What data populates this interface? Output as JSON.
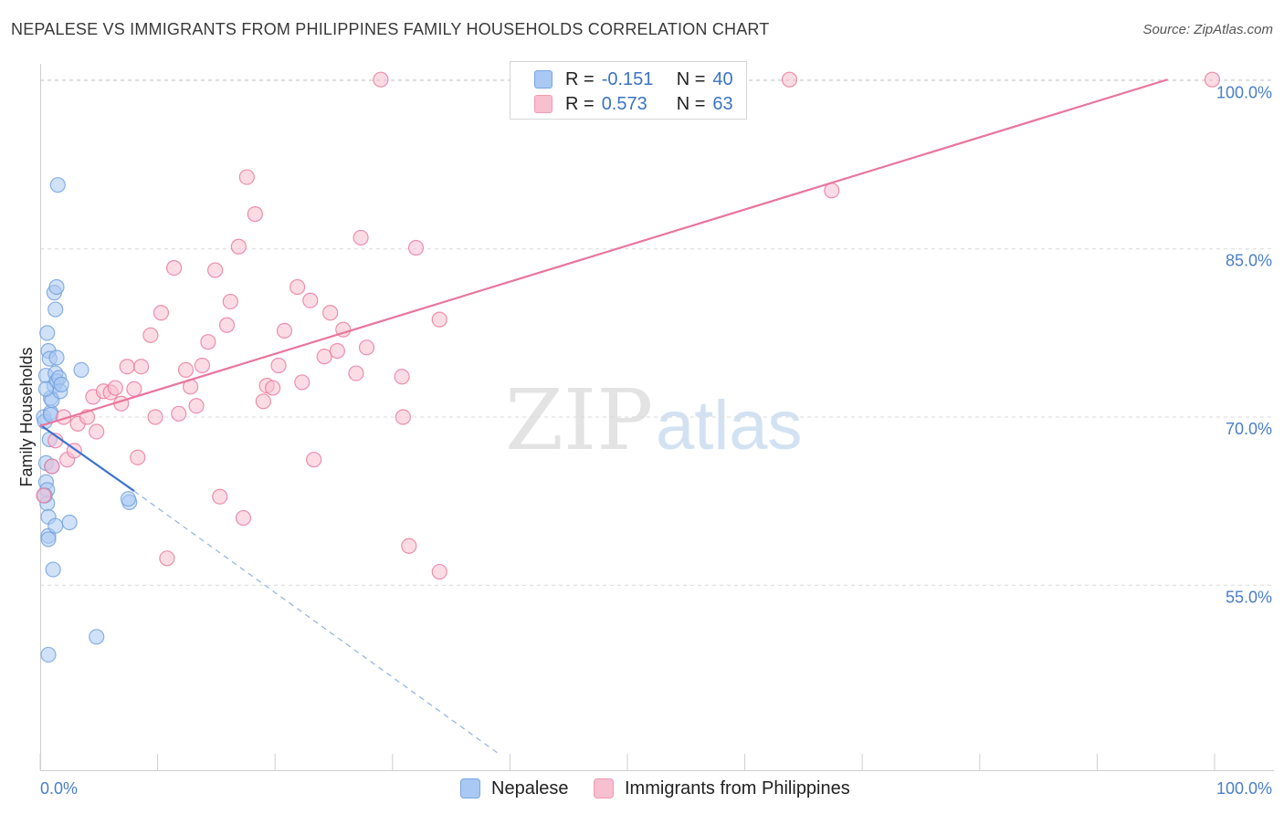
{
  "title": "NEPALESE VS IMMIGRANTS FROM PHILIPPINES FAMILY HOUSEHOLDS CORRELATION CHART",
  "source": "Source: ZipAtlas.com",
  "watermark": {
    "zip": "ZIP",
    "atlas": "atlas"
  },
  "legend": {
    "series": [
      {
        "r_label": "R =",
        "r_value": "-0.151",
        "n_label": "N =",
        "n_value": "40",
        "color": "#a9c8f3",
        "border": "#7aa6e0"
      },
      {
        "r_label": "R =",
        "r_value": "0.573",
        "n_label": "N =",
        "n_value": "63",
        "color": "#f7bfd0",
        "border": "#ee9ab4"
      }
    ]
  },
  "bottom_legend": {
    "nepalese": "Nepalese",
    "philippines": "Immigrants from Philippines"
  },
  "chart_data": {
    "type": "scatter",
    "title": "NEPALESE VS IMMIGRANTS FROM PHILIPPINES FAMILY HOUSEHOLDS CORRELATION CHART",
    "xlabel": "",
    "ylabel": "Family Households",
    "xlim": [
      0,
      100
    ],
    "ylim": [
      38.5,
      101.5
    ],
    "x_tick_labels": [
      "0.0%",
      "100.0%"
    ],
    "y_ticks": [
      55,
      70,
      85,
      100
    ],
    "y_tick_labels": [
      "55.0%",
      "70.0%",
      "85.0%",
      "100.0%"
    ],
    "grid": true,
    "series": [
      {
        "name": "Nepalese",
        "color": "#6f9fdc",
        "fill": "#a9c8f3",
        "points": [
          [
            0.3,
            70.0
          ],
          [
            0.4,
            69.6
          ],
          [
            0.5,
            73.7
          ],
          [
            0.5,
            65.9
          ],
          [
            0.5,
            64.2
          ],
          [
            0.6,
            63.5
          ],
          [
            0.6,
            62.3
          ],
          [
            0.7,
            61.1
          ],
          [
            0.7,
            59.4
          ],
          [
            0.7,
            59.1
          ],
          [
            0.6,
            77.5
          ],
          [
            0.7,
            75.9
          ],
          [
            0.8,
            75.2
          ],
          [
            0.8,
            68.0
          ],
          [
            0.9,
            71.7
          ],
          [
            0.9,
            70.4
          ],
          [
            1.0,
            71.5
          ],
          [
            1.0,
            65.6
          ],
          [
            1.1,
            56.4
          ],
          [
            1.2,
            81.1
          ],
          [
            1.3,
            79.6
          ],
          [
            1.3,
            73.9
          ],
          [
            1.4,
            81.6
          ],
          [
            1.4,
            75.3
          ],
          [
            1.5,
            90.7
          ],
          [
            1.2,
            72.8
          ],
          [
            1.4,
            73.2
          ],
          [
            1.6,
            73.5
          ],
          [
            1.7,
            72.3
          ],
          [
            1.8,
            72.9
          ],
          [
            1.3,
            60.3
          ],
          [
            2.5,
            60.6
          ],
          [
            3.5,
            74.2
          ],
          [
            4.8,
            50.4
          ],
          [
            0.7,
            48.8
          ],
          [
            7.6,
            62.4
          ],
          [
            7.5,
            62.7
          ],
          [
            0.4,
            63.0
          ],
          [
            0.5,
            72.5
          ],
          [
            0.9,
            70.2
          ]
        ],
        "trend": {
          "x": [
            0.0,
            8.0
          ],
          "y": [
            69.3,
            63.4
          ]
        },
        "trend_extension": {
          "x": [
            8.0,
            39.0
          ],
          "y": [
            63.4,
            40.0
          ]
        }
      },
      {
        "name": "Immigrants from Philippines",
        "color": "#e8769c",
        "fill": "#f7bfd0",
        "points": [
          [
            0.3,
            63.0
          ],
          [
            1.0,
            65.6
          ],
          [
            1.3,
            67.9
          ],
          [
            2.0,
            70.0
          ],
          [
            2.3,
            66.2
          ],
          [
            2.9,
            67.0
          ],
          [
            3.2,
            69.4
          ],
          [
            4.0,
            70.0
          ],
          [
            4.5,
            71.8
          ],
          [
            4.8,
            68.7
          ],
          [
            5.4,
            72.3
          ],
          [
            6.0,
            72.2
          ],
          [
            6.4,
            72.6
          ],
          [
            6.9,
            71.2
          ],
          [
            7.4,
            74.5
          ],
          [
            8.0,
            72.5
          ],
          [
            8.3,
            66.4
          ],
          [
            8.6,
            74.5
          ],
          [
            9.4,
            77.3
          ],
          [
            9.8,
            70.0
          ],
          [
            10.3,
            79.3
          ],
          [
            10.8,
            57.4
          ],
          [
            11.4,
            83.3
          ],
          [
            11.8,
            70.3
          ],
          [
            12.4,
            74.2
          ],
          [
            12.8,
            72.7
          ],
          [
            13.3,
            71.0
          ],
          [
            13.8,
            74.6
          ],
          [
            14.3,
            76.7
          ],
          [
            14.9,
            83.1
          ],
          [
            15.3,
            62.9
          ],
          [
            15.9,
            78.2
          ],
          [
            16.2,
            80.3
          ],
          [
            16.9,
            85.2
          ],
          [
            17.3,
            61.0
          ],
          [
            17.6,
            91.4
          ],
          [
            18.3,
            88.1
          ],
          [
            19.0,
            71.4
          ],
          [
            19.3,
            72.8
          ],
          [
            19.8,
            72.6
          ],
          [
            20.3,
            74.6
          ],
          [
            20.8,
            77.7
          ],
          [
            21.9,
            81.6
          ],
          [
            22.3,
            73.1
          ],
          [
            23.0,
            80.4
          ],
          [
            23.3,
            66.2
          ],
          [
            24.2,
            75.4
          ],
          [
            24.7,
            79.3
          ],
          [
            25.3,
            75.9
          ],
          [
            25.8,
            77.8
          ],
          [
            26.9,
            73.9
          ],
          [
            27.3,
            86.0
          ],
          [
            27.8,
            76.2
          ],
          [
            29.0,
            100.1
          ],
          [
            30.8,
            73.6
          ],
          [
            30.9,
            70.0
          ],
          [
            31.4,
            58.5
          ],
          [
            32.0,
            85.1
          ],
          [
            34.0,
            78.7
          ],
          [
            34.0,
            56.2
          ],
          [
            63.8,
            100.1
          ],
          [
            67.4,
            90.2
          ],
          [
            99.8,
            100.1
          ]
        ],
        "trend": {
          "x": [
            0.0,
            96.0
          ],
          "y": [
            69.2,
            100.1
          ]
        }
      }
    ]
  }
}
